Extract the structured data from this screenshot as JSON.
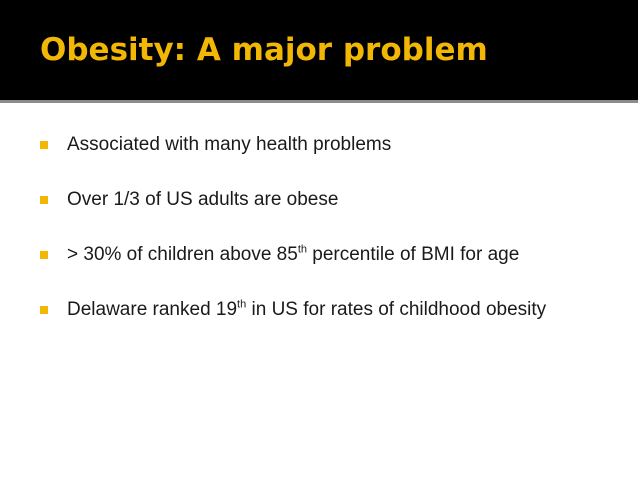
{
  "slide": {
    "title": "Obesity: A major problem",
    "accent_color": "#f2b705",
    "bullet_icon": "square-bullet-icon"
  },
  "bullets": [
    {
      "text": "Associated with many health problems"
    },
    {
      "text": "Over 1/3 of US adults are obese"
    },
    {
      "before": "> 30% of children above 85",
      "sup": "th",
      "after": " percentile of BMI for age"
    },
    {
      "before": "Delaware ranked 19",
      "sup": "th",
      "after": " in US for rates of childhood obesity"
    }
  ]
}
